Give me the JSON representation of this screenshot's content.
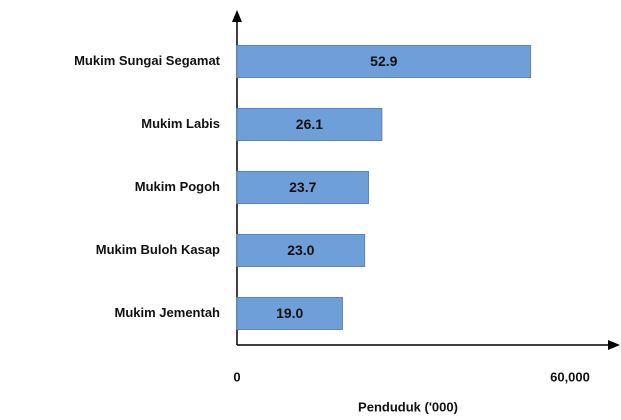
{
  "chart_data": {
    "type": "bar",
    "orientation": "horizontal",
    "x_label": "Penduduk ('000)",
    "categories": [
      "Mukim Sungai Segamat",
      "Mukim Labis",
      "Mukim Pogoh",
      "Mukim Buloh Kasap",
      "Mukim Jementah"
    ],
    "values": [
      52900,
      26100,
      23700,
      23000,
      19000
    ],
    "value_labels": [
      "52.9",
      "26.1",
      "23.7",
      "23.0",
      "19.0"
    ],
    "color": "#6f9fd8",
    "xlim": [
      0,
      60000
    ],
    "xticks": [
      0,
      {
        "value": 60000,
        "label": "60,000"
      }
    ]
  }
}
